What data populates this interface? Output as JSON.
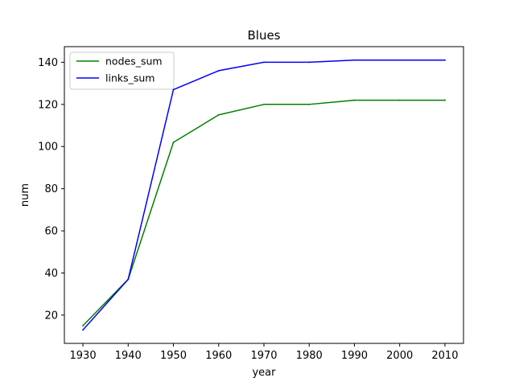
{
  "chart_data": {
    "type": "line",
    "title": "Blues",
    "xlabel": "year",
    "ylabel": "num",
    "x": [
      1930,
      1940,
      1950,
      1960,
      1970,
      1980,
      1990,
      2000,
      2010
    ],
    "xticks": [
      1930,
      1940,
      1950,
      1960,
      1970,
      1980,
      1990,
      2000,
      2010
    ],
    "yticks": [
      20,
      40,
      60,
      80,
      100,
      120,
      140
    ],
    "xlim": [
      1925.9,
      2014.1
    ],
    "ylim": [
      6.6,
      147.4
    ],
    "grid": false,
    "legend_position": "upper-left",
    "series": [
      {
        "name": "nodes_sum",
        "color": "#008000",
        "values": [
          15,
          37,
          102,
          115,
          120,
          120,
          122,
          122,
          122
        ]
      },
      {
        "name": "links_sum",
        "color": "#0000ff",
        "values": [
          13,
          37,
          127,
          136,
          140,
          140,
          141,
          141,
          141
        ]
      }
    ]
  }
}
